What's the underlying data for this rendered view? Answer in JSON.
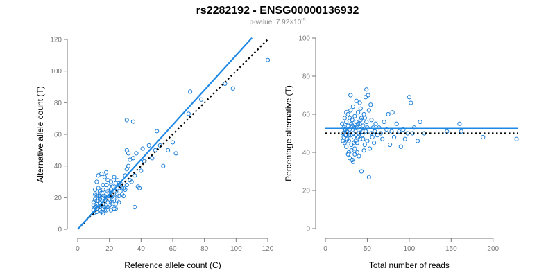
{
  "title": "rs2282192 - ENSG00000136932",
  "subtitle": {
    "prefix": "p-value: 7.92×10",
    "exponent": "-5"
  },
  "colors": {
    "points": "#1e7fd6",
    "fit_line": "#1e88e5",
    "reference_line": "#000000",
    "axis": "#777777"
  },
  "chart_data": [
    {
      "type": "scatter",
      "xlabel": "Reference allele count (C)",
      "ylabel": "Alternative allele count (T)",
      "xlim": [
        0,
        120
      ],
      "ylim": [
        0,
        120
      ],
      "xticks": [
        0,
        20,
        40,
        60,
        80,
        100,
        120
      ],
      "yticks": [
        0,
        20,
        40,
        60,
        80,
        100,
        120
      ],
      "fit_line": [
        [
          0,
          0
        ],
        [
          110,
          121
        ]
      ],
      "reference_line": [
        [
          0,
          0
        ],
        [
          120,
          120
        ]
      ],
      "points": [
        [
          10,
          10
        ],
        [
          10,
          12
        ],
        [
          11,
          14
        ],
        [
          12,
          13
        ],
        [
          12,
          16
        ],
        [
          13,
          18
        ],
        [
          11,
          19
        ],
        [
          13,
          21
        ],
        [
          12,
          22
        ],
        [
          14,
          14
        ],
        [
          14,
          17
        ],
        [
          15,
          20
        ],
        [
          15,
          11
        ],
        [
          16,
          13
        ],
        [
          16,
          16
        ],
        [
          17,
          18
        ],
        [
          17,
          21
        ],
        [
          18,
          15
        ],
        [
          18,
          12
        ],
        [
          19,
          17
        ],
        [
          20,
          19
        ],
        [
          20,
          23
        ],
        [
          21,
          25
        ],
        [
          22,
          22
        ],
        [
          22,
          17
        ],
        [
          23,
          20
        ],
        [
          24,
          24
        ],
        [
          25,
          26
        ],
        [
          11,
          25
        ],
        [
          12,
          30
        ],
        [
          13,
          34
        ],
        [
          15,
          35
        ],
        [
          16,
          28
        ],
        [
          17,
          33
        ],
        [
          18,
          36
        ],
        [
          19,
          31
        ],
        [
          13,
          26
        ],
        [
          14,
          24
        ],
        [
          20,
          27
        ],
        [
          21,
          30
        ],
        [
          23,
          33
        ],
        [
          24,
          29
        ],
        [
          25,
          31
        ],
        [
          26,
          28
        ],
        [
          10,
          17
        ],
        [
          11,
          22
        ],
        [
          12,
          11
        ],
        [
          13,
          15
        ],
        [
          14,
          19
        ],
        [
          15,
          23
        ],
        [
          16,
          10
        ],
        [
          17,
          14
        ],
        [
          18,
          20
        ],
        [
          19,
          24
        ],
        [
          20,
          15
        ],
        [
          21,
          21
        ],
        [
          22,
          27
        ],
        [
          23,
          24
        ],
        [
          24,
          16
        ],
        [
          25,
          18
        ],
        [
          26,
          21
        ],
        [
          27,
          24
        ],
        [
          28,
          26
        ],
        [
          29,
          21
        ],
        [
          30,
          25
        ],
        [
          31,
          28
        ],
        [
          30,
          34
        ],
        [
          31,
          38
        ],
        [
          32,
          40
        ],
        [
          33,
          44
        ],
        [
          32,
          48
        ],
        [
          31,
          50
        ],
        [
          34,
          30
        ],
        [
          35,
          45
        ],
        [
          36,
          14
        ],
        [
          37,
          48
        ],
        [
          38,
          27
        ],
        [
          39,
          26
        ],
        [
          40,
          37
        ],
        [
          41,
          51
        ],
        [
          42,
          43
        ],
        [
          45,
          53
        ],
        [
          47,
          45
        ],
        [
          49,
          50
        ],
        [
          50,
          62
        ],
        [
          52,
          53
        ],
        [
          54,
          40
        ],
        [
          57,
          50
        ],
        [
          31,
          69
        ],
        [
          35,
          68
        ],
        [
          60,
          55
        ],
        [
          62,
          48
        ],
        [
          70,
          73
        ],
        [
          71,
          87
        ],
        [
          78,
          82
        ],
        [
          93,
          92
        ],
        [
          98,
          89
        ],
        [
          120,
          107
        ],
        [
          14,
          21
        ],
        [
          16,
          20
        ],
        [
          18,
          22
        ],
        [
          20,
          21
        ],
        [
          22,
          16
        ],
        [
          24,
          13
        ],
        [
          26,
          17
        ],
        [
          28,
          22
        ],
        [
          17,
          12
        ],
        [
          19,
          14
        ],
        [
          21,
          12
        ],
        [
          23,
          13
        ],
        [
          15,
          15
        ],
        [
          12,
          18
        ],
        [
          14,
          12
        ],
        [
          22,
          19
        ],
        [
          25,
          22
        ],
        [
          29,
          26
        ],
        [
          33,
          31
        ],
        [
          36,
          34
        ],
        [
          27,
          29
        ],
        [
          18,
          28
        ],
        [
          10,
          15
        ],
        [
          16,
          25
        ],
        [
          20,
          24
        ]
      ]
    },
    {
      "type": "scatter",
      "xlabel": "Total number of reads",
      "ylabel": "Percentage alternative (T)",
      "xlim": [
        0,
        230
      ],
      "ylim": [
        0,
        100
      ],
      "xticks": [
        0,
        50,
        100,
        150,
        200
      ],
      "yticks": [
        0,
        20,
        40,
        60,
        80,
        100
      ],
      "fit_line": [
        [
          0,
          52.5
        ],
        [
          230,
          52.5
        ]
      ],
      "reference_line": [
        [
          0,
          50
        ],
        [
          230,
          50
        ]
      ],
      "points": [
        [
          20,
          55
        ],
        [
          21,
          50
        ],
        [
          22,
          48
        ],
        [
          22,
          53
        ],
        [
          23,
          45
        ],
        [
          23,
          58
        ],
        [
          24,
          52
        ],
        [
          24,
          49
        ],
        [
          25,
          56
        ],
        [
          25,
          43
        ],
        [
          26,
          51
        ],
        [
          26,
          47
        ],
        [
          27,
          60
        ],
        [
          27,
          54
        ],
        [
          28,
          46
        ],
        [
          28,
          40
        ],
        [
          29,
          58
        ],
        [
          29,
          52
        ],
        [
          30,
          62
        ],
        [
          30,
          49
        ],
        [
          31,
          44
        ],
        [
          31,
          55
        ],
        [
          32,
          57
        ],
        [
          32,
          36
        ],
        [
          33,
          50
        ],
        [
          33,
          64
        ],
        [
          34,
          48
        ],
        [
          34,
          53
        ],
        [
          35,
          59
        ],
        [
          35,
          42
        ],
        [
          36,
          51
        ],
        [
          36,
          46
        ],
        [
          37,
          67
        ],
        [
          37,
          56
        ],
        [
          38,
          53
        ],
        [
          38,
          45
        ],
        [
          39,
          61
        ],
        [
          39,
          48
        ],
        [
          40,
          50
        ],
        [
          40,
          38
        ],
        [
          41,
          55
        ],
        [
          41,
          47
        ],
        [
          42,
          63
        ],
        [
          42,
          52
        ],
        [
          43,
          58
        ],
        [
          44,
          49
        ],
        [
          45,
          54
        ],
        [
          46,
          60
        ],
        [
          47,
          44
        ],
        [
          48,
          69
        ],
        [
          48,
          51
        ],
        [
          49,
          73
        ],
        [
          49,
          56
        ],
        [
          50,
          46
        ],
        [
          51,
          70
        ],
        [
          52,
          62
        ],
        [
          52,
          27
        ],
        [
          53,
          42
        ],
        [
          54,
          65
        ],
        [
          55,
          57
        ],
        [
          56,
          48
        ],
        [
          57,
          53
        ],
        [
          58,
          45
        ],
        [
          59,
          51
        ],
        [
          60,
          55
        ],
        [
          62,
          49
        ],
        [
          64,
          53
        ],
        [
          66,
          50
        ],
        [
          68,
          47
        ],
        [
          70,
          56
        ],
        [
          73,
          52
        ],
        [
          75,
          60
        ],
        [
          77,
          44
        ],
        [
          79,
          51
        ],
        [
          80,
          61
        ],
        [
          82,
          48
        ],
        [
          85,
          55
        ],
        [
          88,
          51
        ],
        [
          90,
          43
        ],
        [
          93,
          52
        ],
        [
          95,
          47
        ],
        [
          98,
          50
        ],
        [
          100,
          69
        ],
        [
          102,
          66
        ],
        [
          104,
          50
        ],
        [
          106,
          53
        ],
        [
          110,
          46
        ],
        [
          113,
          56
        ],
        [
          118,
          50
        ],
        [
          145,
          51
        ],
        [
          160,
          55
        ],
        [
          162,
          51
        ],
        [
          188,
          48
        ],
        [
          228,
          47
        ],
        [
          27,
          39
        ],
        [
          29,
          37
        ],
        [
          31,
          41
        ],
        [
          33,
          35
        ],
        [
          35,
          39
        ],
        [
          38,
          40
        ],
        [
          43,
          30
        ],
        [
          46,
          41
        ],
        [
          30,
          70
        ],
        [
          41,
          66
        ],
        [
          25,
          61
        ],
        [
          21,
          46
        ],
        [
          23,
          52
        ],
        [
          28,
          49
        ],
        [
          32,
          54
        ],
        [
          34,
          45
        ],
        [
          36,
          53
        ],
        [
          39,
          55
        ],
        [
          42,
          57
        ],
        [
          44,
          51
        ],
        [
          45,
          47
        ],
        [
          47,
          58
        ],
        [
          50,
          53
        ],
        [
          55,
          50
        ]
      ]
    }
  ]
}
